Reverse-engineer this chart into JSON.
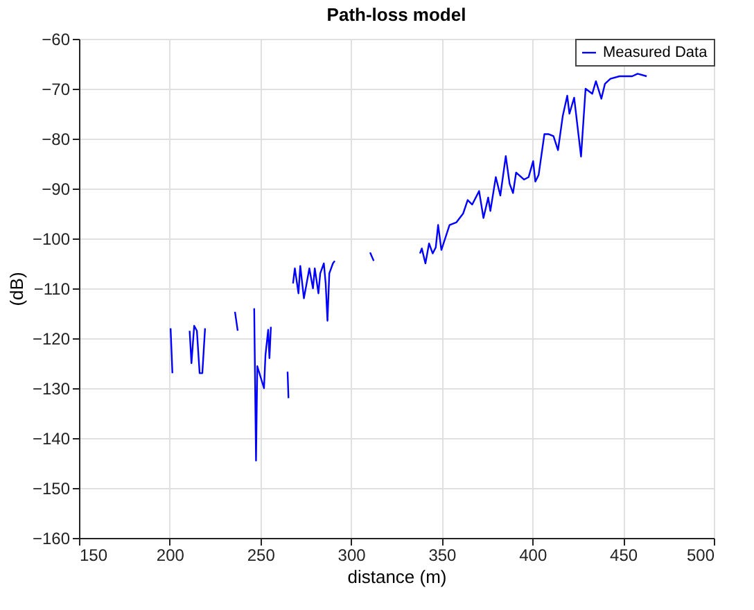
{
  "chart_data": {
    "type": "line",
    "title": "Path-loss model",
    "xlabel": "distance (m)",
    "ylabel": "(dB)",
    "xlim": [
      150,
      500
    ],
    "xticks": [
      150,
      200,
      250,
      300,
      350,
      400,
      450,
      500
    ],
    "ylim": [
      -160,
      -60
    ],
    "yticks": [
      -160,
      -150,
      -140,
      -130,
      -120,
      -110,
      -100,
      -90,
      -80,
      -70,
      -60
    ],
    "grid": true,
    "legend": "top right",
    "line_style": "solid",
    "marker": "none",
    "series": [
      {
        "name": "Measured Data",
        "color": "#0000ff",
        "x": [
          200.5,
          201.5,
          205,
          211,
          212,
          213.5,
          215,
          216.5,
          218,
          219.5,
          225,
          236,
          237.5,
          240,
          246.6,
          247.6,
          248.3,
          252,
          252.8,
          254.3,
          255,
          255.8,
          260,
          265,
          265.5,
          266,
          268,
          269,
          271,
          272,
          274,
          276,
          277,
          279,
          280,
          282,
          283,
          285,
          286,
          287,
          288,
          290,
          291,
          300,
          310.5,
          312.5,
          320,
          338,
          339,
          341,
          343,
          345,
          346.7,
          348,
          349.8,
          354.3,
          358,
          361.8,
          364.3,
          366.8,
          370.6,
          373,
          375.6,
          376.8,
          379.8,
          382.3,
          385.3,
          387.4,
          389.3,
          391,
          395.4,
          397.9,
          400.4,
          401.6,
          403.4,
          406.6,
          409,
          411.6,
          414.1,
          416.7,
          419.2,
          420.4,
          423,
          426.8,
          429.3,
          433,
          435,
          438,
          440,
          443,
          448,
          455,
          458,
          463
        ],
        "values": [
          -118,
          -127,
          null,
          -118.5,
          -125,
          -117.5,
          -118.5,
          -127,
          -127,
          -118,
          null,
          -114.7,
          -118.5,
          null,
          -114,
          -144.5,
          -125.6,
          -130,
          -123.4,
          -118.3,
          -124,
          -117.7,
          null,
          -126.7,
          -132,
          null,
          -109,
          -106,
          -111,
          -105.5,
          -112,
          -108,
          -106,
          -110,
          -106,
          -111,
          -107,
          -105,
          -109,
          -116.5,
          -107,
          -105,
          -104.5,
          null,
          -102.8,
          -104.5,
          null,
          -103,
          -102,
          -105,
          -101,
          -103,
          -101.8,
          -97.3,
          -102.3,
          -97.3,
          -96.8,
          -95,
          -92.3,
          -93.2,
          -90.5,
          -95.9,
          -91.8,
          -94.5,
          -87.7,
          -91.4,
          -83.5,
          -89,
          -90.9,
          -86.8,
          -88.2,
          -87.7,
          -84.5,
          -88.6,
          -87.3,
          -79.1,
          -79.1,
          -79.5,
          -82.3,
          -75.5,
          -71.4,
          -75,
          -71.8,
          -83.6,
          -70,
          -71,
          -68.5,
          -72,
          -69,
          -68,
          -67.5,
          -67.5,
          -67,
          -67.5
        ]
      }
    ]
  }
}
